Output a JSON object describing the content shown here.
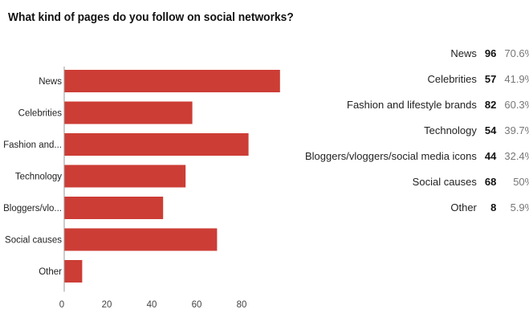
{
  "title": "What kind of pages do you follow on social networks?",
  "chart_data": {
    "type": "bar",
    "orientation": "horizontal",
    "categories": [
      "News",
      "Celebrities",
      "Fashion and...",
      "Technology",
      "Bloggers/vlo...",
      "Social causes",
      "Other"
    ],
    "values": [
      96,
      57,
      82,
      54,
      44,
      68,
      8
    ],
    "xticks": [
      0,
      20,
      40,
      60,
      80
    ],
    "xlim": [
      0,
      100
    ],
    "grid": false,
    "bar_color": "#cc3d35"
  },
  "summary": {
    "rows": [
      {
        "label": "News",
        "count": "96",
        "percent": "70.6%"
      },
      {
        "label": "Celebrities",
        "count": "57",
        "percent": "41.9%"
      },
      {
        "label": "Fashion and lifestyle brands",
        "count": "82",
        "percent": "60.3%"
      },
      {
        "label": "Technology",
        "count": "54",
        "percent": "39.7%"
      },
      {
        "label": "Bloggers/vloggers/social media icons",
        "count": "44",
        "percent": "32.4%"
      },
      {
        "label": "Social causes",
        "count": "68",
        "percent": "50%"
      },
      {
        "label": "Other",
        "count": "8",
        "percent": "5.9%"
      }
    ]
  }
}
